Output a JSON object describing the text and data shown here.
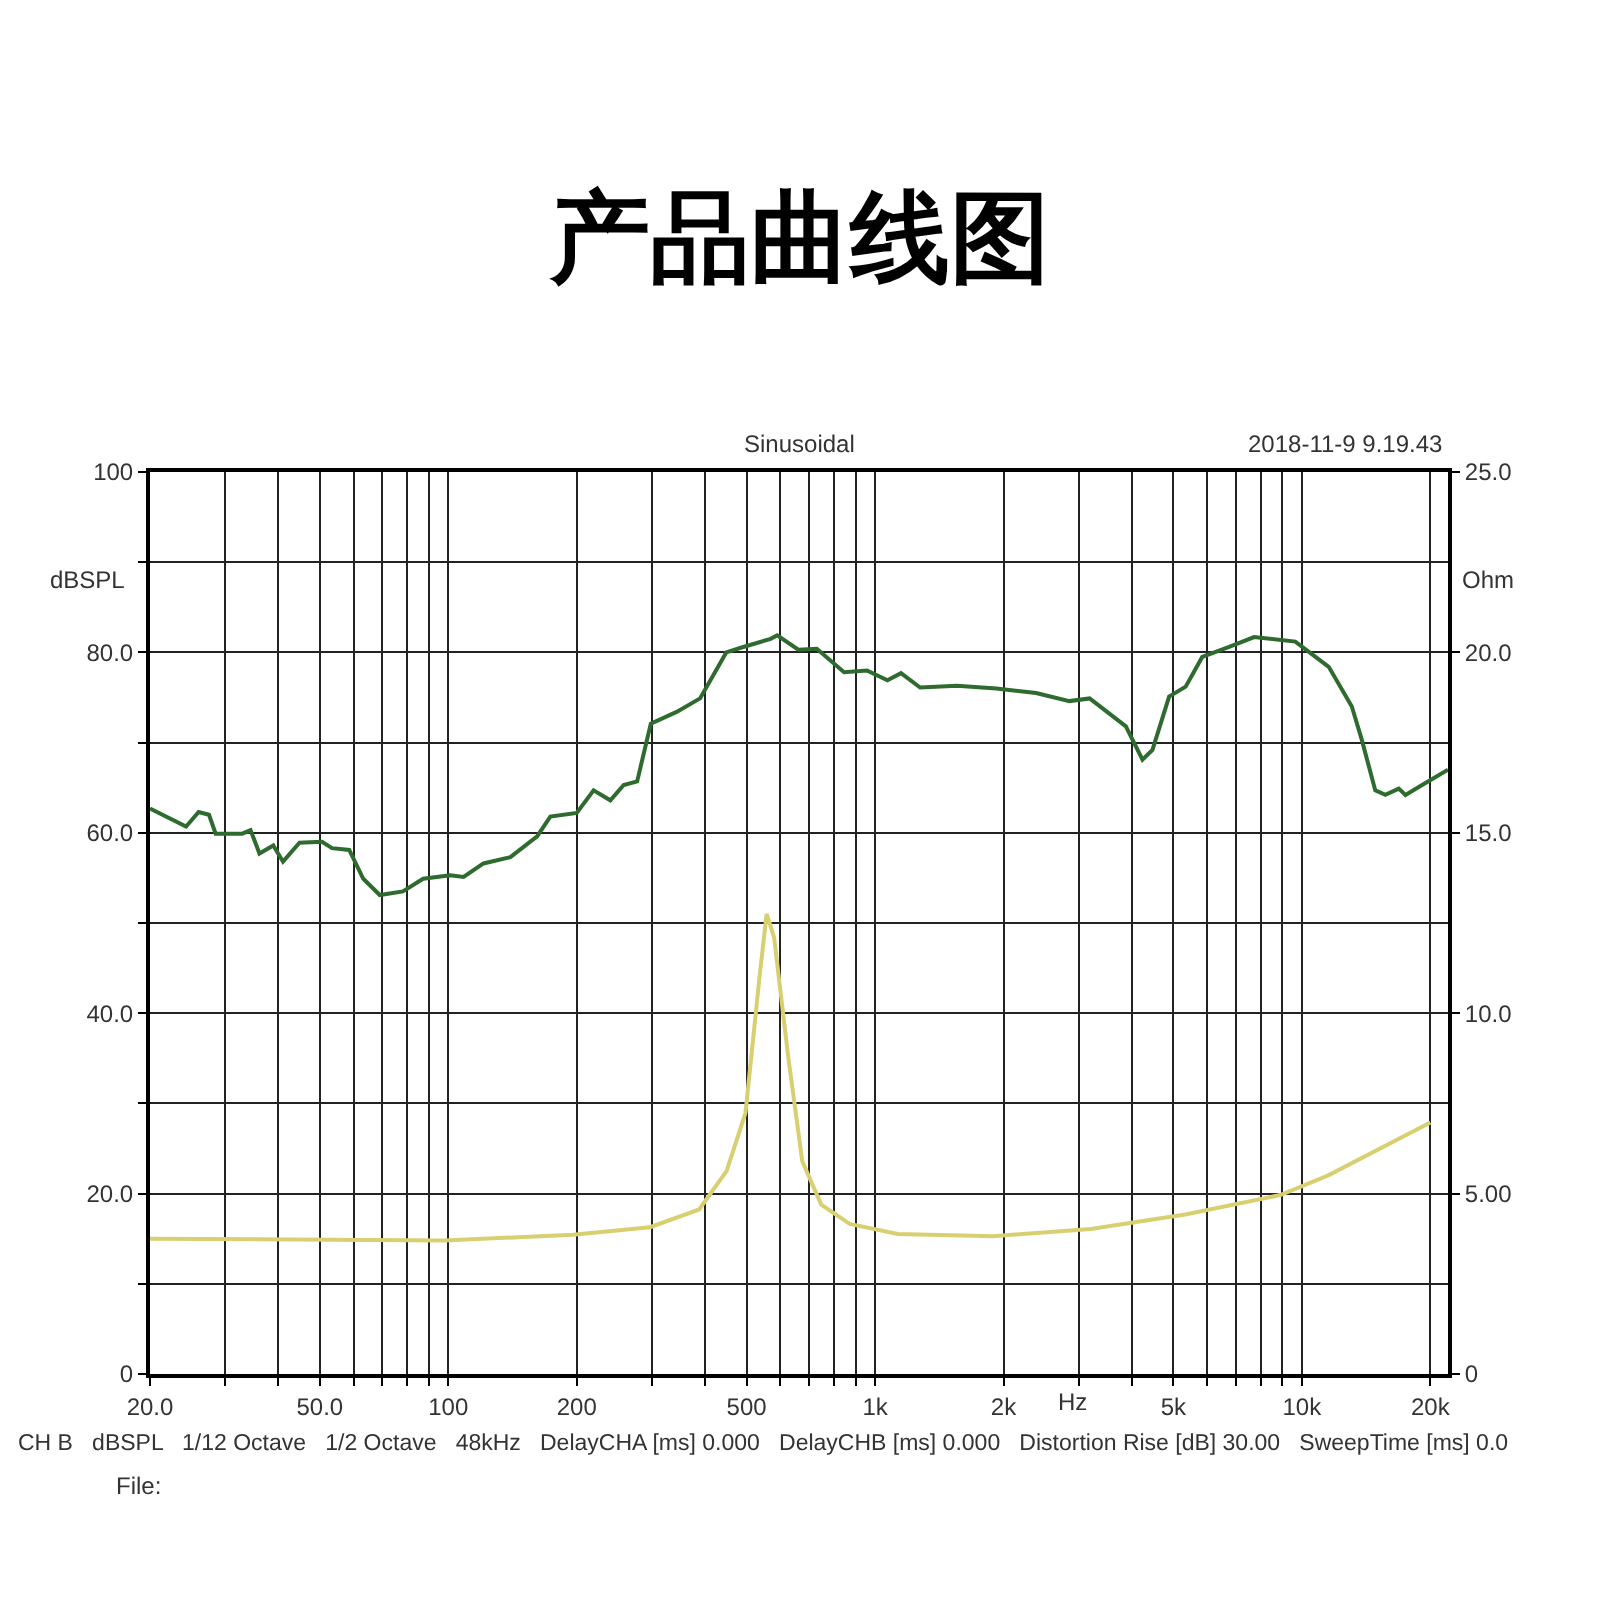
{
  "chart_data": {
    "type": "line",
    "title": "产品曲线图",
    "subtitle": "Sinusoidal",
    "ylabel": "dBSPL",
    "y2label": "Ohm",
    "xlabel": "Hz",
    "annotations": [
      "2018-11-9 9.19.43",
      "CH B   dBSPL   1/12 Octave   1/2 Octave   48kHz   DelayCHA [ms] 0.000   DelayCHB [ms] 0.000   Distortion Rise [dB] 30.00   SweepTime [ms] 0.0",
      "File:"
    ],
    "log": "x",
    "grid": true,
    "marker": "none",
    "line_style": "solid",
    "xlim": [
      20,
      22000
    ],
    "xticks": [
      {
        "value": 20,
        "label": "20.0"
      },
      {
        "value": 30,
        "label": null
      },
      {
        "value": 40,
        "label": null
      },
      {
        "value": 50,
        "label": "50.0"
      },
      {
        "value": 60,
        "label": null
      },
      {
        "value": 70,
        "label": null
      },
      {
        "value": 80,
        "label": null
      },
      {
        "value": 90,
        "label": null
      },
      100,
      {
        "value": 200,
        "label": "200"
      },
      {
        "value": 300,
        "label": null
      },
      {
        "value": 400,
        "label": null
      },
      500,
      {
        "value": 600,
        "label": null
      },
      {
        "value": 700,
        "label": null
      },
      {
        "value": 800,
        "label": null
      },
      {
        "value": 900,
        "label": null
      },
      {
        "value": 1000,
        "label": "1k"
      },
      {
        "value": 2000,
        "label": "2k"
      },
      {
        "value": 3000,
        "label": null
      },
      {
        "value": 4000,
        "label": null
      },
      {
        "value": 5000,
        "label": "5k"
      },
      {
        "value": 6000,
        "label": null
      },
      {
        "value": 7000,
        "label": null
      },
      {
        "value": 8000,
        "label": null
      },
      {
        "value": 9000,
        "label": null
      },
      {
        "value": 10000,
        "label": "10k"
      },
      {
        "value": 20000,
        "label": "20k"
      }
    ],
    "ylim": [
      0,
      100
    ],
    "yticks": [
      0,
      {
        "value": 10,
        "label": null
      },
      {
        "value": 20,
        "label": "20.0"
      },
      {
        "value": 30,
        "label": null
      },
      {
        "value": 40,
        "label": "40.0"
      },
      {
        "value": 50,
        "label": null
      },
      {
        "value": 60,
        "label": "60.0"
      },
      {
        "value": 70,
        "label": null
      },
      {
        "value": 80,
        "label": "80.0"
      },
      {
        "value": 90,
        "label": null
      },
      100
    ],
    "y2lim": [
      0,
      25
    ],
    "y2ticks": [
      0,
      {
        "value": 5,
        "label": "5.00"
      },
      {
        "value": 10,
        "label": "10.0"
      },
      {
        "value": 15,
        "label": "15.0"
      },
      {
        "value": 20,
        "label": "20.0"
      },
      {
        "value": 25,
        "label": "25.0"
      }
    ],
    "series": [
      {
        "color": "#2e6b2e",
        "x": [
          20,
          24.3,
          26,
          27.5,
          28.5,
          32.9,
          34.4,
          36.1,
          38.9,
          41,
          44.8,
          50.6,
          53.4,
          58.6,
          63.2,
          69.1,
          78.3,
          87.3,
          101,
          108.6,
          120.9,
          139.8,
          161.5,
          173.4,
          200,
          219,
          239.7,
          257.6,
          277,
          298.2,
          342.8,
          389,
          448,
          491,
          569,
          590,
          661,
          730,
          846,
          957,
          1069,
          1150,
          1275,
          1556,
          1924,
          2384,
          2854,
          3182,
          3869,
          4232,
          4466,
          4886,
          5343,
          5843,
          6755,
          7729,
          9654,
          11560,
          13093,
          13820,
          14860,
          15690,
          16870,
          17490,
          19130,
          22000
        ],
        "values": [
          62.7,
          60.7,
          62.3,
          62.0,
          59.9,
          59.9,
          60.3,
          57.7,
          58.6,
          56.8,
          58.9,
          59.0,
          58.3,
          58.1,
          54.9,
          53.1,
          53.5,
          54.9,
          55.3,
          55.1,
          56.6,
          57.3,
          59.6,
          61.8,
          62.2,
          64.7,
          63.6,
          65.3,
          65.7,
          72.1,
          73.4,
          74.9,
          80.0,
          80.6,
          81.5,
          81.9,
          80.3,
          80.4,
          77.8,
          78.0,
          76.9,
          77.7,
          76.1,
          76.3,
          76.0,
          75.5,
          74.6,
          74.9,
          71.8,
          68.1,
          69.2,
          75.1,
          76.2,
          79.5,
          80.6,
          81.7,
          81.2,
          78.4,
          74.0,
          70.3,
          64.7,
          64.2,
          64.9,
          64.2,
          65.3,
          67.0
        ]
      },
      {
        "color": "#d8d070",
        "axis": "y2",
        "x": [
          20,
          98,
          196,
          297,
          387,
          449,
          497,
          536,
          557,
          580,
          625,
          675,
          748,
          872,
          1130,
          1893,
          3200,
          5330,
          8900,
          11500,
          20000
        ],
        "values": [
          3.75,
          3.7,
          3.86,
          4.07,
          4.56,
          5.63,
          7.24,
          11.0,
          12.75,
          12.1,
          8.85,
          5.9,
          4.69,
          4.16,
          3.88,
          3.82,
          4.02,
          4.42,
          4.96,
          5.5,
          6.97
        ]
      }
    ]
  }
}
